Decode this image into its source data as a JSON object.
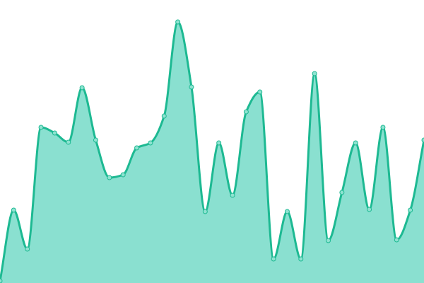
{
  "chart_data": {
    "type": "area",
    "title": "",
    "xlabel": "",
    "ylabel": "",
    "x": [
      0,
      1,
      2,
      3,
      4,
      5,
      6,
      7,
      8,
      9,
      10,
      11,
      12,
      13,
      14,
      15,
      16,
      17,
      18,
      19,
      20,
      21,
      22,
      23,
      24,
      25,
      26,
      27,
      28,
      29,
      30,
      31
    ],
    "values": [
      3,
      103,
      48,
      220,
      212,
      199,
      276,
      202,
      149,
      153,
      191,
      198,
      236,
      369,
      277,
      101,
      198,
      124,
      242,
      270,
      34,
      101,
      34,
      296,
      60,
      128,
      198,
      104,
      220,
      61,
      103,
      202
    ],
    "ylim": [
      0,
      400
    ],
    "grid": false,
    "axes_visible": false,
    "legend": "none",
    "colors": {
      "line": "#1db992",
      "fill": "#8ae0d0",
      "point_fill": "#8fe3d1"
    }
  }
}
